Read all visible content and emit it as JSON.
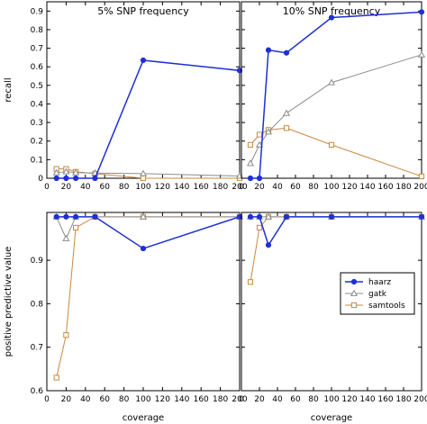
{
  "chart_data": {
    "type": "line",
    "x_label": "coverage",
    "x_ticks": [
      0,
      20,
      40,
      60,
      80,
      100,
      120,
      140,
      160,
      180,
      200
    ],
    "xlim": [
      0,
      200
    ],
    "legend_position": "center-right",
    "series_styles": [
      {
        "name": "haarz",
        "color": "#1f2fd6",
        "marker": "filled-circle"
      },
      {
        "name": "gatk",
        "color": "#8c8c8c",
        "marker": "open-triangle"
      },
      {
        "name": "samtools",
        "color": "#c8893e",
        "marker": "open-square"
      }
    ],
    "panels": [
      {
        "id": "recall-5",
        "title": "5% SNP frequency",
        "row": 0,
        "col": 0,
        "y_label": "recall",
        "ylim": [
          0,
          0.95
        ],
        "y_ticks": [
          0,
          0.1,
          0.2,
          0.3,
          0.4,
          0.5,
          0.6,
          0.7,
          0.8,
          0.9
        ],
        "y_tick_labels": [
          "0",
          "0.1",
          "0.2",
          "0.3",
          "0.4",
          "0.5",
          "0.6",
          "0.7",
          "0.8",
          "0.9"
        ],
        "series": [
          {
            "name": "haarz",
            "x": [
              10,
              20,
              30,
              50,
              100,
              200
            ],
            "y": [
              0.0,
              0.0,
              0.0,
              0.0,
              0.635,
              0.58
            ]
          },
          {
            "name": "gatk",
            "x": [
              10,
              20,
              30,
              50,
              100,
              200
            ],
            "y": [
              0.03,
              0.035,
              0.03,
              0.028,
              0.025,
              0.012
            ]
          },
          {
            "name": "samtools",
            "x": [
              10,
              20,
              30,
              50,
              100,
              200
            ],
            "y": [
              0.05,
              0.05,
              0.035,
              0.025,
              0.0,
              0.0
            ]
          }
        ]
      },
      {
        "id": "recall-10",
        "title": "10% SNP frequency",
        "row": 0,
        "col": 1,
        "y_label": "",
        "ylim": [
          0,
          0.95
        ],
        "y_ticks": [
          0,
          0.1,
          0.2,
          0.3,
          0.4,
          0.5,
          0.6,
          0.7,
          0.8,
          0.9
        ],
        "y_tick_labels": [],
        "series": [
          {
            "name": "haarz",
            "x": [
              10,
              20,
              30,
              50,
              100,
              200
            ],
            "y": [
              0.0,
              0.0,
              0.69,
              0.675,
              0.865,
              0.895
            ]
          },
          {
            "name": "gatk",
            "x": [
              10,
              20,
              30,
              50,
              100,
              200
            ],
            "y": [
              0.08,
              0.18,
              0.25,
              0.35,
              0.515,
              0.665
            ]
          },
          {
            "name": "samtools",
            "x": [
              10,
              20,
              30,
              50,
              100,
              200
            ],
            "y": [
              0.18,
              0.235,
              0.26,
              0.27,
              0.18,
              0.01
            ]
          }
        ]
      },
      {
        "id": "ppv-5",
        "title": "",
        "row": 1,
        "col": 0,
        "y_label": "positive predictive value",
        "ylim": [
          0.6,
          1.01
        ],
        "y_ticks": [
          0.6,
          0.7,
          0.8,
          0.9
        ],
        "y_tick_labels": [
          "0.6",
          "0.7",
          "0.8",
          "0.9"
        ],
        "series": [
          {
            "name": "haarz",
            "x": [
              10,
              20,
              30,
              50,
              100,
              200
            ],
            "y": [
              1.0,
              1.0,
              1.0,
              1.0,
              0.927,
              1.0
            ]
          },
          {
            "name": "gatk",
            "x": [
              10,
              20,
              30,
              50,
              100,
              200
            ],
            "y": [
              1.0,
              0.95,
              1.0,
              1.0,
              1.0,
              1.0
            ]
          },
          {
            "name": "samtools",
            "x": [
              10,
              20,
              30,
              50,
              100,
              200
            ],
            "y": [
              0.63,
              0.728,
              0.975,
              1.0,
              1.0,
              1.0
            ]
          }
        ]
      },
      {
        "id": "ppv-10",
        "title": "",
        "row": 1,
        "col": 1,
        "y_label": "",
        "ylim": [
          0.6,
          1.01
        ],
        "y_ticks": [
          0.6,
          0.7,
          0.8,
          0.9
        ],
        "y_tick_labels": [],
        "series": [
          {
            "name": "haarz",
            "x": [
              10,
              20,
              30,
              50,
              100,
              200
            ],
            "y": [
              1.0,
              1.0,
              0.935,
              1.0,
              1.0,
              1.0
            ]
          },
          {
            "name": "gatk",
            "x": [
              10,
              20,
              30,
              50,
              100,
              200
            ],
            "y": [
              1.0,
              1.0,
              1.0,
              1.0,
              1.0,
              1.0
            ]
          },
          {
            "name": "samtools",
            "x": [
              10,
              20,
              30,
              50,
              100,
              200
            ],
            "y": [
              0.85,
              0.975,
              1.0,
              1.0,
              1.0,
              1.0
            ]
          }
        ]
      }
    ]
  }
}
